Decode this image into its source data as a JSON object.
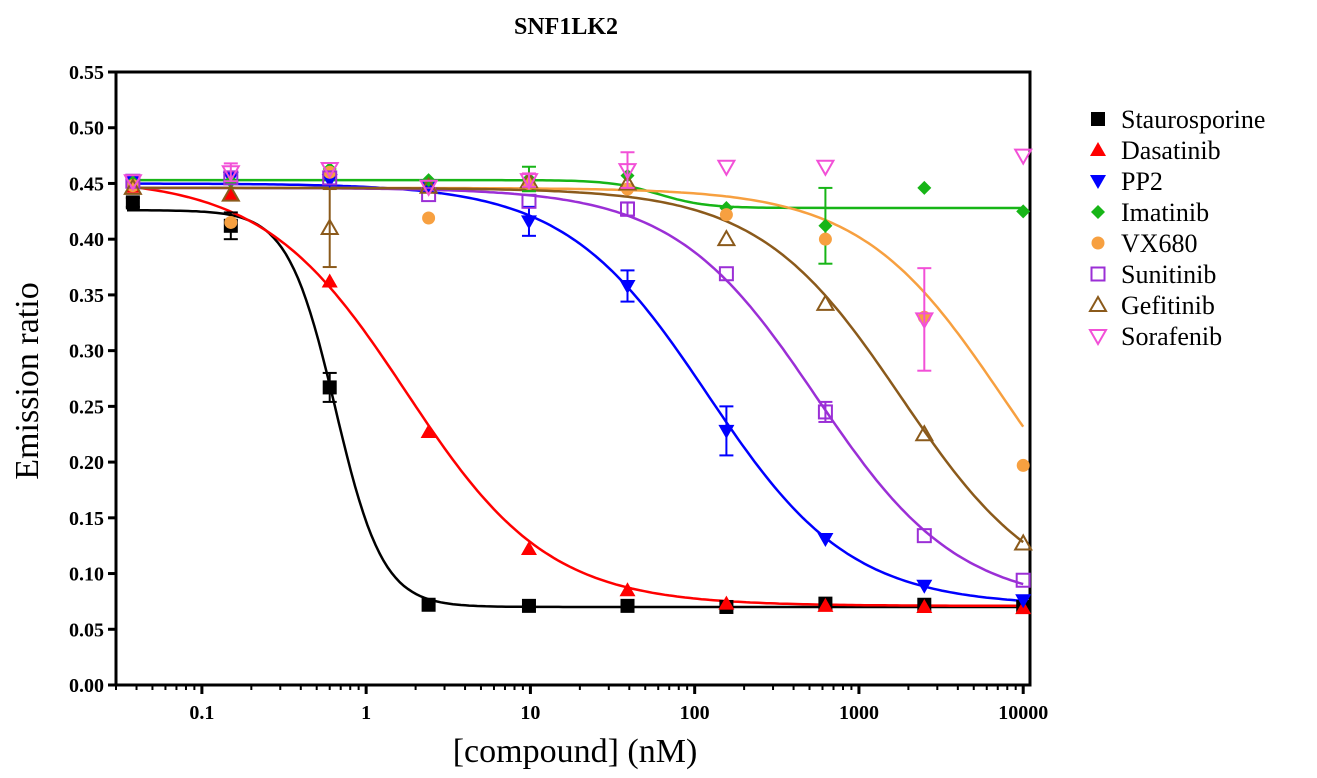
{
  "chart_data": {
    "type": "scatter",
    "title": "SNF1LK2",
    "xlabel": "[compound] (nM)",
    "ylabel": "Emission ratio",
    "xscale": "log",
    "xlim": [
      0.03,
      11000
    ],
    "ylim": [
      0,
      0.55
    ],
    "xticks": [
      {
        "value": 0.1,
        "label": "0.1"
      },
      {
        "value": 1,
        "label": "1"
      },
      {
        "value": 10,
        "label": "10"
      },
      {
        "value": 100,
        "label": "100"
      },
      {
        "value": 1000,
        "label": "1000"
      },
      {
        "value": 10000,
        "label": "10000"
      }
    ],
    "yticks": [
      {
        "value": 0.0,
        "label": "0.00"
      },
      {
        "value": 0.05,
        "label": "0.05"
      },
      {
        "value": 0.1,
        "label": "0.10"
      },
      {
        "value": 0.15,
        "label": "0.15"
      },
      {
        "value": 0.2,
        "label": "0.20"
      },
      {
        "value": 0.25,
        "label": "0.25"
      },
      {
        "value": 0.3,
        "label": "0.30"
      },
      {
        "value": 0.35,
        "label": "0.35"
      },
      {
        "value": 0.4,
        "label": "0.40"
      },
      {
        "value": 0.45,
        "label": "0.45"
      },
      {
        "value": 0.5,
        "label": "0.50"
      },
      {
        "value": 0.55,
        "label": "0.55"
      }
    ],
    "grid": false,
    "legend_position": "right",
    "x": [
      0.038,
      0.15,
      0.6,
      2.4,
      9.8,
      39,
      156,
      625,
      2500,
      10000
    ],
    "series": [
      {
        "name": "Staurosporine",
        "color": "#000000",
        "marker": "square-filled",
        "values": [
          0.433,
          0.412,
          0.267,
          0.072,
          0.071,
          0.071,
          0.07,
          0.073,
          0.072,
          0.07
        ],
        "errors": [
          0.004,
          0.012,
          0.013,
          0,
          0,
          0,
          0,
          0,
          0,
          0
        ],
        "fit": {
          "top": 0.426,
          "bottom": 0.07,
          "ic50": 0.65,
          "hill": 3.0
        }
      },
      {
        "name": "Dasatinib",
        "color": "#ff0000",
        "marker": "triangle-up-filled",
        "values": [
          0.447,
          0.44,
          0.362,
          0.227,
          0.122,
          0.085,
          0.073,
          0.071,
          0.07,
          0.069
        ],
        "errors": [
          0,
          0,
          0,
          0,
          0,
          0,
          0,
          0,
          0,
          0
        ],
        "fit": {
          "top": 0.455,
          "bottom": 0.071,
          "ic50": 1.75,
          "hill": 1.0
        }
      },
      {
        "name": "PP2",
        "color": "#0000ff",
        "marker": "triangle-down-filled",
        "values": [
          0.452,
          0.455,
          0.453,
          0.448,
          0.416,
          0.358,
          0.228,
          0.131,
          0.089,
          0.076
        ],
        "errors": [
          0,
          0,
          0,
          0,
          0.013,
          0.014,
          0.022,
          0,
          0,
          0
        ],
        "fit": {
          "top": 0.45,
          "bottom": 0.071,
          "ic50": 120,
          "hill": 1.0
        }
      },
      {
        "name": "Imatinib",
        "color": "#17b517",
        "marker": "diamond-filled",
        "values": [
          0.451,
          0.452,
          0.463,
          0.453,
          0.454,
          0.457,
          0.428,
          0.412,
          0.446,
          0.425
        ],
        "errors": [
          0,
          0,
          0,
          0,
          0.011,
          0,
          0,
          0.034,
          0,
          0
        ],
        "fit": {
          "top": 0.453,
          "bottom": 0.428,
          "ic50": 60,
          "hill": 3.0
        }
      },
      {
        "name": "VX680",
        "color": "#f7a040",
        "marker": "circle-filled",
        "values": [
          0.448,
          0.415,
          0.46,
          0.419,
          0.45,
          0.445,
          0.422,
          0.4,
          0.33,
          0.197
        ],
        "errors": [
          0,
          0,
          0,
          0,
          0,
          0,
          0,
          0,
          0,
          0
        ],
        "fit": {
          "top": 0.446,
          "bottom": 0.071,
          "ic50": 7500,
          "hill": 1.0
        }
      },
      {
        "name": "Sunitinib",
        "color": "#9b2fd6",
        "marker": "square-open",
        "values": [
          0.452,
          0.455,
          0.455,
          0.44,
          0.434,
          0.427,
          0.369,
          0.245,
          0.134,
          0.094
        ],
        "errors": [
          0,
          0,
          0,
          0,
          0,
          0.006,
          0,
          0.009,
          0,
          0
        ],
        "fit": {
          "top": 0.446,
          "bottom": 0.071,
          "ic50": 550,
          "hill": 1.0
        }
      },
      {
        "name": "Gefitinib",
        "color": "#8b5a1b",
        "marker": "triangle-up-open",
        "values": [
          0.446,
          0.44,
          0.41,
          0.447,
          0.452,
          0.45,
          0.4,
          0.342,
          0.225,
          0.127
        ],
        "errors": [
          0,
          0,
          0.035,
          0,
          0,
          0,
          0,
          0,
          0,
          0
        ],
        "fit": {
          "top": 0.446,
          "bottom": 0.071,
          "ic50": 1800,
          "hill": 1.0
        }
      },
      {
        "name": "Sorafenib",
        "color": "#f250d7",
        "marker": "triangle-down-open",
        "values": [
          0.452,
          0.46,
          0.463,
          0.447,
          0.453,
          0.462,
          0.465,
          0.465,
          0.328,
          0.475
        ],
        "errors": [
          0,
          0.008,
          0,
          0,
          0.006,
          0.016,
          0,
          0,
          0.046,
          0
        ],
        "fit": null
      }
    ]
  }
}
